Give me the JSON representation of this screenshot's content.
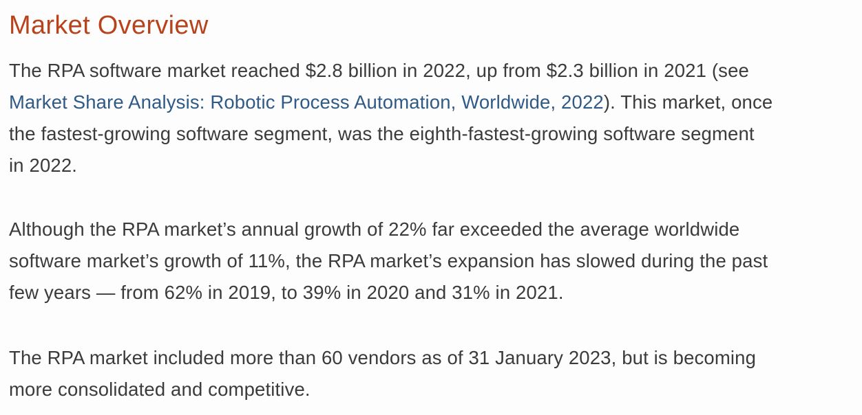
{
  "heading": "Market Overview",
  "p1": {
    "line1": "The RPA software market reached $2.8 billion in 2022, up from $2.3 billion in 2021 (see",
    "link_text": "Market Share Analysis: Robotic Process Automation, Worldwide, 2022",
    "line2_after": "). This market, once",
    "line3": "the fastest-growing software segment, was the eighth-fastest-growing software segment",
    "line4": "in 2022."
  },
  "p2": {
    "line1": "Although the RPA market’s annual growth of 22% far exceeded the average worldwide",
    "line2": "software market’s growth of 11%, the RPA market’s expansion has slowed during the past",
    "line3": "few years — from 62% in 2019, to 39% in 2020 and 31% in 2021."
  },
  "p3": {
    "line1": "The RPA market included more than 60 vendors as of 31 January 2023, but is becoming",
    "line2": "more consolidated and competitive."
  },
  "colors": {
    "heading": "#b8421b",
    "body_text": "#3b3b3b",
    "link": "#2f5a86",
    "background": "#fdfdfd"
  }
}
